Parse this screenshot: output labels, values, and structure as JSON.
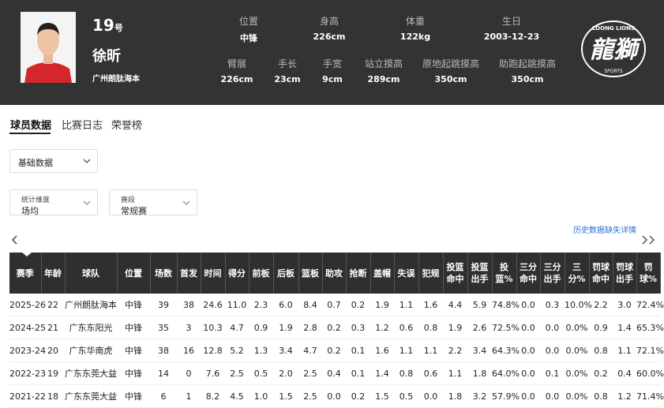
{
  "header": {
    "number": "19",
    "number_suffix": "号",
    "name": "徐昕",
    "team": "广州朗肽海本",
    "attributes": [
      {
        "label": "位置",
        "value": "中锋"
      },
      {
        "label": "身高",
        "value": "226cm"
      },
      {
        "label": "体重",
        "value": "122kg"
      },
      {
        "label": "生日",
        "value": "2003-12-23"
      },
      {
        "label": "臂展",
        "value": "226cm"
      },
      {
        "label": "手长",
        "value": "23cm"
      },
      {
        "label": "手宽",
        "value": "9cm"
      },
      {
        "label": "站立摸高",
        "value": "289cm"
      },
      {
        "label": "原地起跳摸高",
        "value": "350cm"
      },
      {
        "label": "助跑起跳摸高",
        "value": "350cm"
      }
    ],
    "logo": {
      "top": "LOONG LIONS",
      "main": "龍獅",
      "bottom": "SPORTS"
    }
  },
  "tabs": [
    "球员数据",
    "比赛日志",
    "荣誉榜"
  ],
  "stat_select": "基础数据",
  "filters": [
    {
      "label": "统计维度",
      "value": "场均"
    },
    {
      "label": "赛段",
      "value": "常规赛"
    }
  ],
  "missing_link": "历史数据缺失详情",
  "table": {
    "headers": [
      "赛季",
      "年龄",
      "球队",
      "位置",
      "场数",
      "首发",
      "时间",
      "得分",
      "前板",
      "后板",
      "篮板",
      "助攻",
      "抢断",
      "盖帽",
      "失误",
      "犯规",
      "投篮命中",
      "投篮出手",
      "投篮%",
      "三分命中",
      "三分出手",
      "三分%",
      "罚球命中",
      "罚球出手",
      "罚球%"
    ],
    "rows": [
      [
        "2025-26",
        "22",
        "广州朗肽海本",
        "中锋",
        "39",
        "38",
        "24.6",
        "11.0",
        "2.3",
        "6.0",
        "8.4",
        "0.7",
        "0.2",
        "1.9",
        "1.1",
        "1.6",
        "4.4",
        "5.9",
        "74.8%",
        "0.0",
        "0.3",
        "10.0%",
        "2.2",
        "3.0",
        "72.4%"
      ],
      [
        "2024-25",
        "21",
        "广东东阳光",
        "中锋",
        "35",
        "3",
        "10.3",
        "4.7",
        "0.9",
        "1.9",
        "2.8",
        "0.2",
        "0.3",
        "1.2",
        "0.6",
        "0.8",
        "1.9",
        "2.6",
        "72.5%",
        "0.0",
        "0.0",
        "0.0%",
        "0.9",
        "1.4",
        "65.3%"
      ],
      [
        "2023-24",
        "20",
        "广东华南虎",
        "中锋",
        "38",
        "16",
        "12.8",
        "5.2",
        "1.3",
        "3.4",
        "4.7",
        "0.2",
        "0.1",
        "1.6",
        "1.1",
        "1.1",
        "2.2",
        "3.4",
        "64.3%",
        "0.0",
        "0.0",
        "0.0%",
        "0.8",
        "1.1",
        "72.1%"
      ],
      [
        "2022-23",
        "19",
        "广东东莞大益",
        "中锋",
        "14",
        "0",
        "7.6",
        "2.5",
        "0.5",
        "2.0",
        "2.5",
        "0.4",
        "0.1",
        "1.4",
        "0.8",
        "0.6",
        "1.1",
        "1.8",
        "64.0%",
        "0.0",
        "0.1",
        "0.0%",
        "0.2",
        "0.4",
        "60.0%"
      ],
      [
        "2021-22",
        "18",
        "广东东莞大益",
        "中锋",
        "6",
        "1",
        "8.2",
        "4.5",
        "1.0",
        "1.5",
        "2.5",
        "0.0",
        "0.2",
        "1.5",
        "0.5",
        "0.0",
        "1.8",
        "3.2",
        "57.9%",
        "0.0",
        "0.0",
        "0.0%",
        "0.8",
        "1.2",
        "71.4%"
      ]
    ]
  }
}
